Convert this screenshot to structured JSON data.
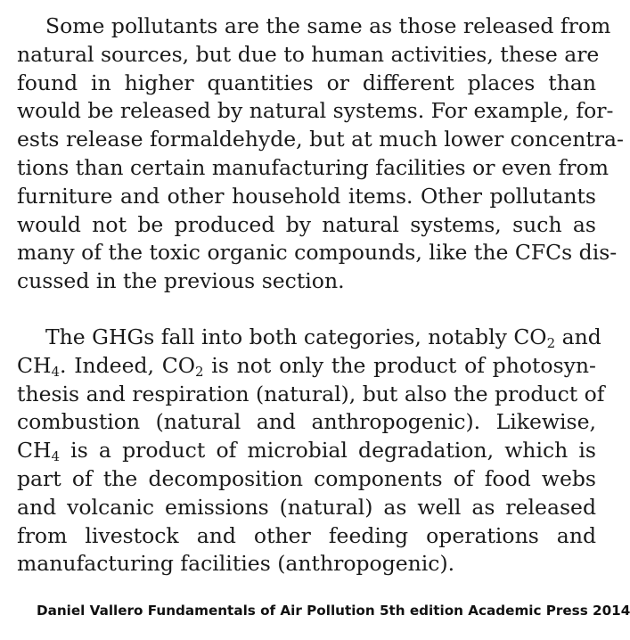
{
  "paragraph1": {
    "lines": [
      "Some pollutants are the same as those released from",
      "natural sources, but due to human activities, these are",
      "found in higher quantities or different places than",
      "would be released by natural systems. For example, for-",
      "ests release formaldehyde, but at much lower concentra-",
      "tions than certain manufacturing facilities or even from",
      "furniture and other household items. Other pollutants",
      "would not be produced by natural systems, such as",
      "many of the toxic organic compounds, like the CFCs dis-",
      "cussed in the previous section."
    ]
  },
  "paragraph2": {
    "line1_pre": "The GHGs fall into both categories, notably CO",
    "line1_sub": "2",
    "line1_post": " and",
    "line2_a": "CH",
    "line2_sub1": "4",
    "line2_b": ". Indeed, CO",
    "line2_sub2": "2",
    "line2_c": " is not only the product of photosyn-",
    "line3": "thesis and respiration (natural), but also the product of",
    "line4": "combustion (natural and anthropogenic). Likewise,",
    "line5_a": "CH",
    "line5_sub": "4",
    "line5_b": " is a product of microbial degradation, which is",
    "line6": "part of the decomposition components of food webs",
    "line7": "and volcanic emissions (natural) as well as released",
    "line8": "from livestock and other feeding operations and",
    "line9": "manufacturing facilities (anthropogenic)."
  },
  "citation": "Daniel Vallero Fundamentals of Air Pollution 5th edition Academic Press 2014"
}
